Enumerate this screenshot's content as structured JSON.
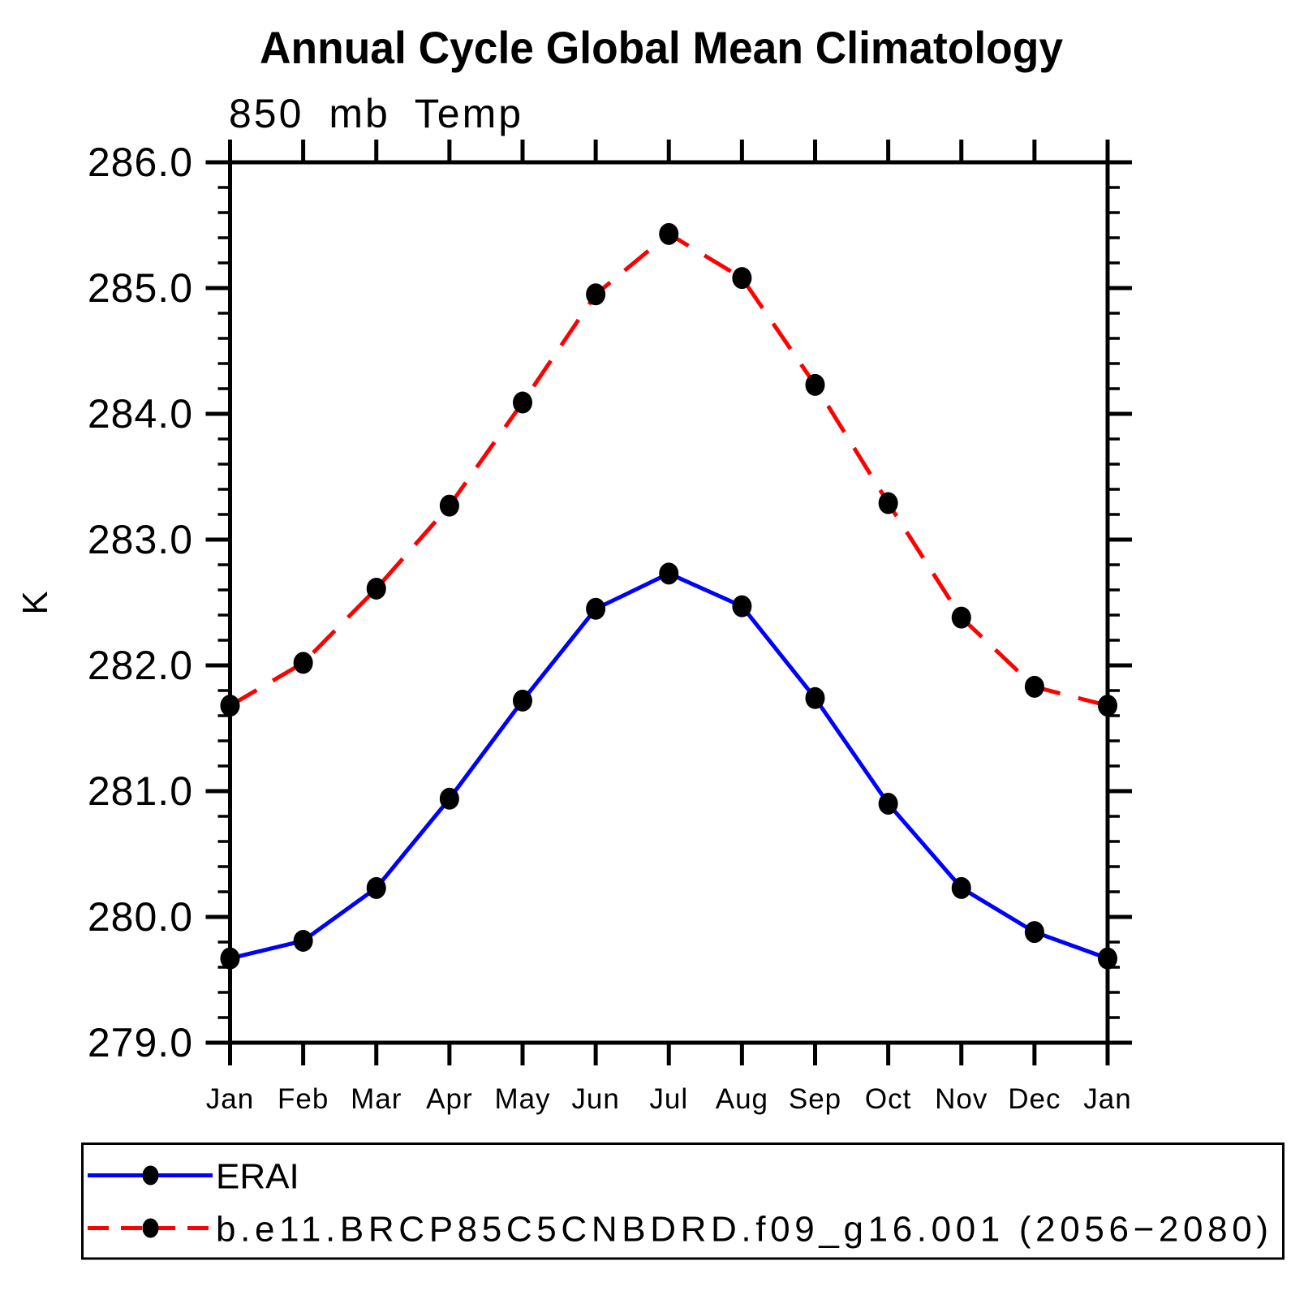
{
  "page": {
    "background": "#ffffff"
  },
  "chart_data": {
    "type": "line",
    "title": "Annual Cycle Global Mean Climatology",
    "subtitle": "850 mb Temp",
    "xlabel": "",
    "ylabel": "K",
    "categories": [
      "Jan",
      "Feb",
      "Mar",
      "Apr",
      "May",
      "Jun",
      "Jul",
      "Aug",
      "Sep",
      "Oct",
      "Nov",
      "Dec",
      "Jan"
    ],
    "ylim": [
      279.0,
      286.0
    ],
    "y_major_tick_step": 1.0,
    "y_minor_tick_step": 0.2,
    "y_tick_labels": [
      "279.0",
      "280.0",
      "281.0",
      "282.0",
      "283.0",
      "284.0",
      "285.0",
      "286.0"
    ],
    "grid": false,
    "legend_position": "bottom-left-box",
    "series": [
      {
        "id": "erai",
        "name": "ERAI",
        "color": "#0000ff",
        "line_style": "solid",
        "marker": "filled-circle",
        "marker_color": "#000000",
        "values": [
          279.67,
          279.81,
          280.23,
          280.94,
          281.72,
          282.45,
          282.73,
          282.47,
          281.74,
          280.9,
          280.23,
          279.88,
          279.67
        ]
      },
      {
        "id": "model",
        "name": "b.e11.BRCP85C5CNBDRD.f09_g16.001 (2056−2080)",
        "color": "#ff0000",
        "line_style": "dashed",
        "marker": "filled-circle",
        "marker_color": "#000000",
        "values": [
          281.68,
          282.02,
          282.61,
          283.27,
          284.09,
          284.95,
          285.43,
          285.08,
          284.23,
          283.29,
          282.38,
          281.83,
          281.68
        ]
      }
    ]
  },
  "legend": {
    "entries": [
      {
        "label": "ERAI",
        "color": "#0000ff",
        "style": "solid"
      },
      {
        "label": "b.e11.BRCP85C5CNBDRD.f09_g16.001 (2056−2080)",
        "color": "#ff0000",
        "style": "dashed"
      }
    ]
  }
}
